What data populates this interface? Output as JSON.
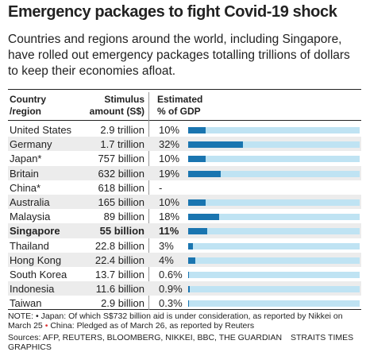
{
  "title": "Emergency packages to fight Covid-19 shock",
  "subtitle": "Countries and regions around the world, including Singapore, have rolled out emergency packages totalling trillions of dollars to keep their economies afloat.",
  "table": {
    "columns": [
      [
        "Country",
        "/region"
      ],
      [
        "Stimulus",
        "amount (S$)"
      ],
      [
        "Estimated",
        "% of GDP"
      ]
    ],
    "bar_scale": [
      0,
      100
    ],
    "bar_color": "#1a75b0",
    "track_color": "#bfe3f3",
    "stripe_color": "#ececec",
    "highlight_row": 7,
    "rows": [
      {
        "country": "United States",
        "stimulus": "2.9 trillion",
        "gdp": 10,
        "gdp_label": "10%"
      },
      {
        "country": "Germany",
        "stimulus": "1.7 trillion",
        "gdp": 32,
        "gdp_label": "32%"
      },
      {
        "country": "Japan*",
        "stimulus": "757 billion",
        "gdp": 10,
        "gdp_label": "10%"
      },
      {
        "country": "Britain",
        "stimulus": "632 billion",
        "gdp": 19,
        "gdp_label": "19%"
      },
      {
        "country": "China*",
        "stimulus": "618 billion",
        "gdp": null,
        "gdp_label": "-"
      },
      {
        "country": "Australia",
        "stimulus": "165 billion",
        "gdp": 10,
        "gdp_label": "10%"
      },
      {
        "country": "Malaysia",
        "stimulus": "89 billion",
        "gdp": 18,
        "gdp_label": "18%"
      },
      {
        "country": "Singapore",
        "stimulus": "55 billion",
        "gdp": 11,
        "gdp_label": "11%"
      },
      {
        "country": "Thailand",
        "stimulus": "22.8 billion",
        "gdp": 3,
        "gdp_label": "3%"
      },
      {
        "country": "Hong Kong",
        "stimulus": "22.4 billion",
        "gdp": 4,
        "gdp_label": "4%"
      },
      {
        "country": "South Korea",
        "stimulus": "13.7 billion",
        "gdp": 0.6,
        "gdp_label": "0.6%"
      },
      {
        "country": "Indonesia",
        "stimulus": "11.6 billion",
        "gdp": 0.9,
        "gdp_label": "0.9%"
      },
      {
        "country": "Taiwan",
        "stimulus": "2.9 billion",
        "gdp": 0.3,
        "gdp_label": "0.3%"
      }
    ]
  },
  "note_label": "NOTE:",
  "notes": [
    "Japan: Of which S$732 billion aid is under consideration, as reported by Nikkei on March 25",
    "China: Pledged as of March 26, as reported by Reuters"
  ],
  "sources": "Sources: AFP, REUTERS, BLOOMBERG, NIKKEI, BBC, THE GUARDIAN",
  "credit": "STRAITS TIMES GRAPHICS"
}
